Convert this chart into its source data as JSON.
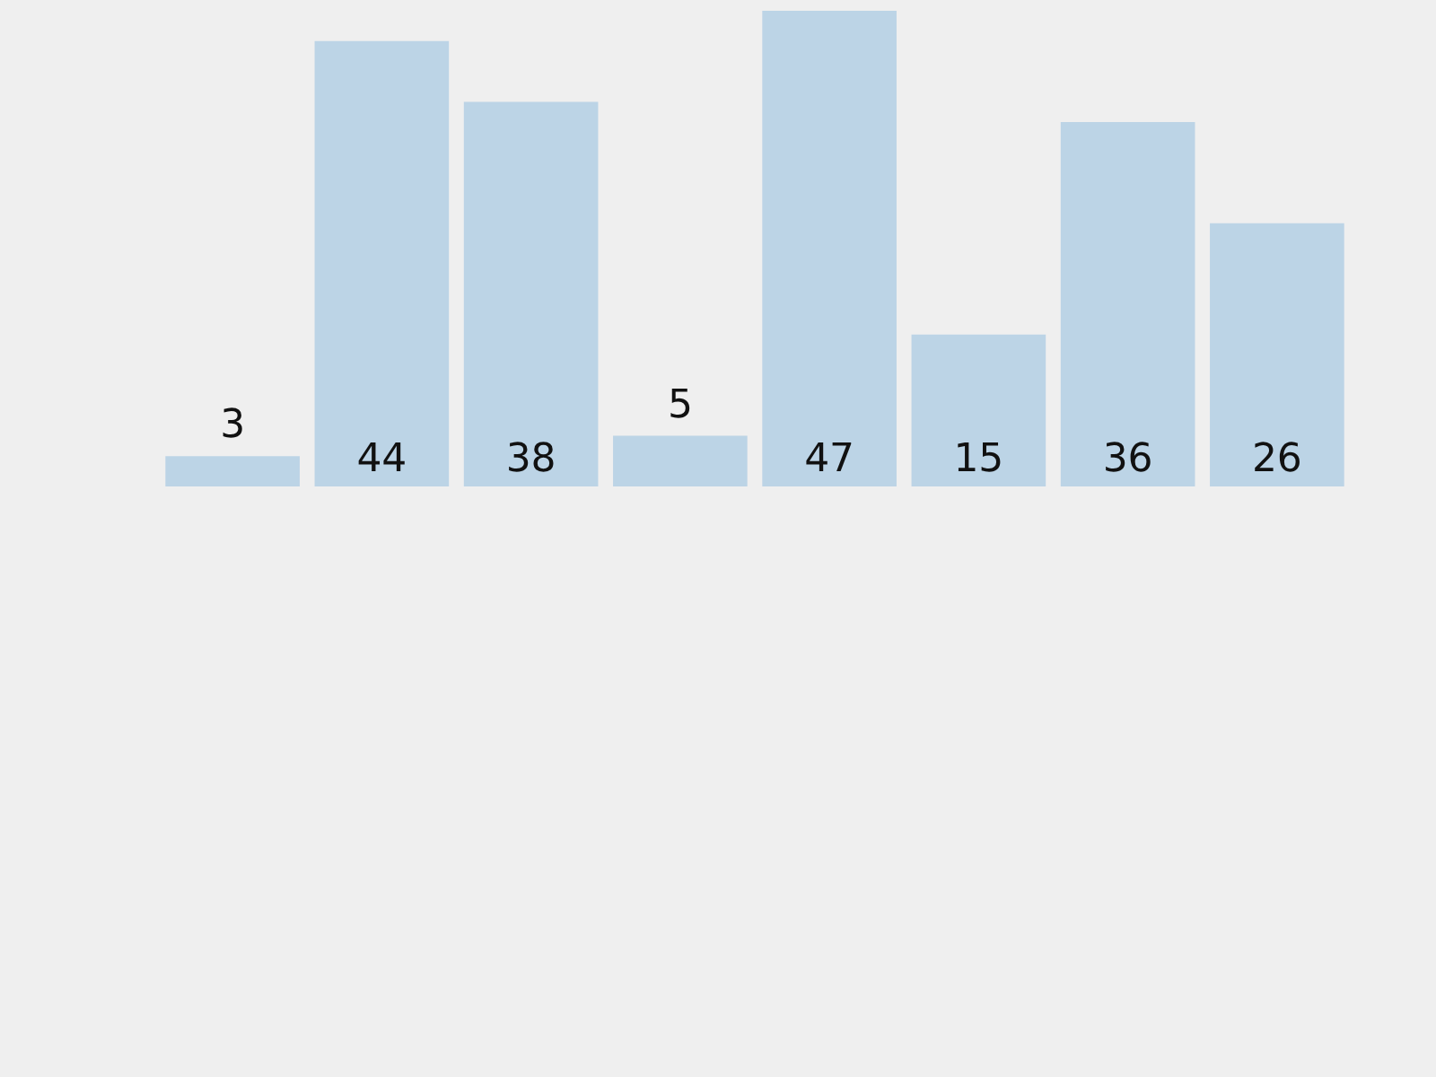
{
  "chart_data": {
    "type": "bar",
    "categories": [
      null,
      null,
      null,
      null,
      null,
      null,
      null,
      null
    ],
    "values": [
      3,
      44,
      38,
      5,
      47,
      15,
      36,
      26
    ],
    "color": "#bcd4e6",
    "data_labels": true
  }
}
